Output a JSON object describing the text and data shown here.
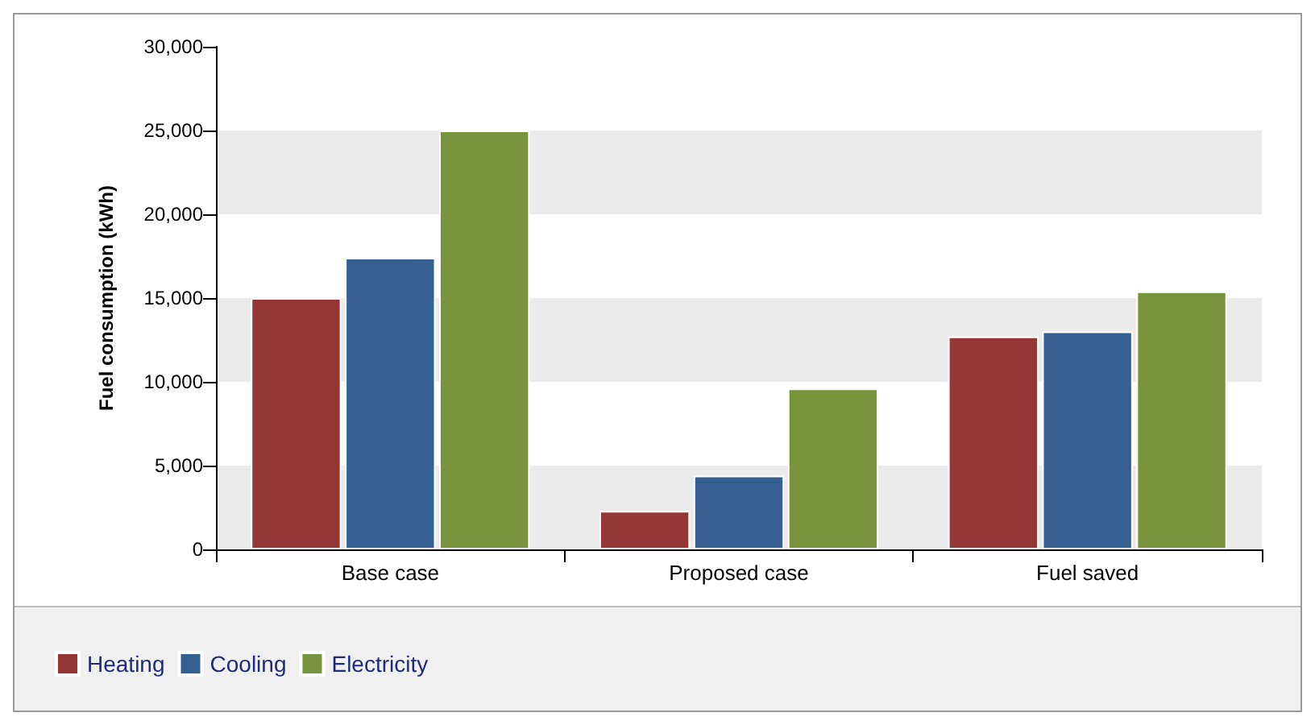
{
  "chart_data": {
    "type": "bar",
    "ylabel": "Fuel consumption (kWh)",
    "categories": [
      "Base case",
      "Proposed case",
      "Fuel saved"
    ],
    "series": [
      {
        "name": "Heating",
        "color": "#953735",
        "values": [
          15000,
          2300,
          12700
        ]
      },
      {
        "name": "Cooling",
        "color": "#355f91",
        "values": [
          17400,
          4400,
          13000
        ]
      },
      {
        "name": "Electricity",
        "color": "#77933c",
        "values": [
          25000,
          9600,
          15400
        ]
      }
    ],
    "ylim": [
      0,
      30000
    ],
    "yticks": [
      {
        "value": 0,
        "label": "0"
      },
      {
        "value": 5000,
        "label": "5,000"
      },
      {
        "value": 10000,
        "label": "10,000"
      },
      {
        "value": 15000,
        "label": "15,000"
      },
      {
        "value": 20000,
        "label": "20,000"
      },
      {
        "value": 25000,
        "label": "25,000"
      },
      {
        "value": 30000,
        "label": "30,000"
      }
    ],
    "bands": [
      {
        "axis": "y",
        "from": 0,
        "to": 5000,
        "color": "#ebebeb"
      },
      {
        "axis": "y",
        "from": 10000,
        "to": 15000,
        "color": "#ebebeb"
      },
      {
        "axis": "y",
        "from": 20000,
        "to": 25000,
        "color": "#ebebeb"
      }
    ],
    "legend": "bottom left"
  }
}
